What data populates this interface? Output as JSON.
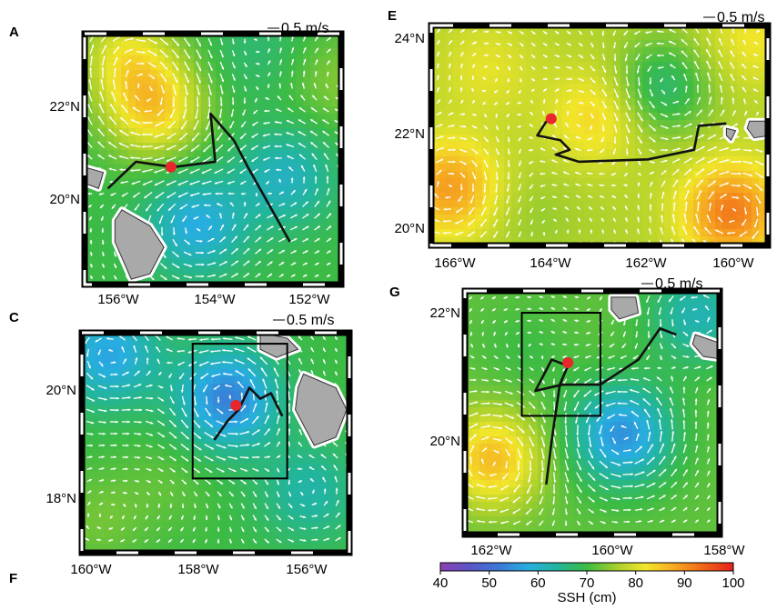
{
  "panels": {
    "A": {
      "letter": "A",
      "scale_label": "0.5 m/s",
      "lat_labels": [
        "22°N",
        "20°N"
      ],
      "lon_labels": [
        "156°W",
        "154°W",
        "152°W"
      ],
      "track": [
        [
          -156.2,
          20.6
        ],
        [
          -155.6,
          21.1
        ],
        [
          -154.8,
          21.0
        ],
        [
          -153.9,
          21.1
        ],
        [
          -154.0,
          22.0
        ],
        [
          -153.5,
          21.5
        ],
        [
          -153.2,
          21.0
        ],
        [
          -152.3,
          19.6
        ]
      ],
      "float_position": [
        -154.85,
        21.0
      ],
      "eddies": [
        {
          "lon": -155.2,
          "lat": 22.1,
          "ssh": 84
        },
        {
          "lon": -155.8,
          "lat": 23.1,
          "ssh": 80
        },
        {
          "lon": -154.3,
          "lat": 19.9,
          "ssh": 58
        },
        {
          "lon": -152.4,
          "lat": 20.8,
          "ssh": 61
        },
        {
          "lon": -153.0,
          "lat": 23.2,
          "ssh": 67
        },
        {
          "lon": -151.3,
          "lat": 22.6,
          "ssh": 74
        }
      ]
    },
    "C": {
      "letter": "C",
      "scale_label": "0.5 m/s",
      "lat_labels": [
        "20°N",
        "18°N"
      ],
      "lon_labels": [
        "160°W",
        "158°W",
        "156°W"
      ],
      "track": [
        [
          -157.55,
          19.05
        ],
        [
          -157.3,
          19.4
        ],
        [
          -157.1,
          19.6
        ],
        [
          -156.9,
          20.0
        ],
        [
          -156.7,
          19.8
        ],
        [
          -156.5,
          19.9
        ],
        [
          -156.3,
          19.5
        ],
        [
          -156.5,
          19.9
        ]
      ],
      "float_position": [
        -157.15,
        19.68
      ],
      "box": [
        -157.95,
        18.35,
        -156.2,
        20.8
      ],
      "eddies": [
        {
          "lon": -157.3,
          "lat": 19.8,
          "ssh": 53
        },
        {
          "lon": -159.5,
          "lat": 20.6,
          "ssh": 57
        },
        {
          "lon": -158.4,
          "lat": 18.3,
          "ssh": 72
        },
        {
          "lon": -159.7,
          "lat": 17.6,
          "ssh": 73
        },
        {
          "lon": -155.8,
          "lat": 18.1,
          "ssh": 63
        }
      ]
    },
    "E": {
      "letter": "E",
      "scale_label": "0.5 m/s",
      "lat_labels": [
        "24°N",
        "22°N",
        "20°N"
      ],
      "lon_labels": [
        "166°W",
        "164°W",
        "162°W",
        "160°W"
      ],
      "track": [
        [
          -164.2,
          22.2
        ],
        [
          -164.4,
          21.9
        ],
        [
          -163.9,
          21.8
        ],
        [
          -163.7,
          21.6
        ],
        [
          -164.0,
          21.5
        ],
        [
          -163.5,
          21.35
        ],
        [
          -162.0,
          21.4
        ],
        [
          -161.0,
          21.6
        ],
        [
          -160.9,
          22.1
        ],
        [
          -160.3,
          22.15
        ]
      ],
      "float_position": [
        -164.1,
        22.25
      ],
      "eddies": [
        {
          "lon": -165.5,
          "lat": 23.3,
          "ssh": 81
        },
        {
          "lon": -166.3,
          "lat": 20.8,
          "ssh": 89
        },
        {
          "lon": -163.1,
          "lat": 22.3,
          "ssh": 84
        },
        {
          "lon": -160.2,
          "lat": 20.3,
          "ssh": 92
        },
        {
          "lon": -159.7,
          "lat": 23.9,
          "ssh": 82
        },
        {
          "lon": -164.5,
          "lat": 20.2,
          "ssh": 75
        },
        {
          "lon": -161.7,
          "lat": 22.9,
          "ssh": 67
        }
      ]
    },
    "G": {
      "letter": "G",
      "scale_label": "0.5 m/s",
      "lat_labels": [
        "22°N",
        "20°N"
      ],
      "lon_labels": [
        "162°W",
        "160°W",
        "158°W"
      ],
      "track": [
        [
          -161.0,
          19.2
        ],
        [
          -160.9,
          19.9
        ],
        [
          -160.75,
          20.8
        ],
        [
          -160.6,
          21.1
        ],
        [
          -160.9,
          21.2
        ],
        [
          -161.2,
          20.7
        ],
        [
          -160.7,
          20.8
        ],
        [
          -160.0,
          20.8
        ],
        [
          -159.3,
          21.2
        ],
        [
          -158.9,
          21.7
        ],
        [
          -158.6,
          21.6
        ]
      ],
      "float_position": [
        -160.6,
        21.15
      ],
      "box": [
        -161.45,
        20.3,
        -160.0,
        21.95
      ],
      "eddies": [
        {
          "lon": -159.6,
          "lat": 20.0,
          "ssh": 55
        },
        {
          "lon": -162.0,
          "lat": 19.6,
          "ssh": 86
        },
        {
          "lon": -158.2,
          "lat": 21.9,
          "ssh": 62
        },
        {
          "lon": -161.4,
          "lat": 21.3,
          "ssh": 70
        }
      ]
    },
    "F": {
      "letter": "F"
    }
  },
  "colorbar": {
    "ticks": [
      "40",
      "50",
      "60",
      "70",
      "80",
      "90",
      "100"
    ],
    "label": "SSH (cm)"
  },
  "colors": {
    "track": "#111111",
    "float_marker": "#e8262c",
    "land": "#a9a9a9",
    "arrow": "#ffffff"
  }
}
